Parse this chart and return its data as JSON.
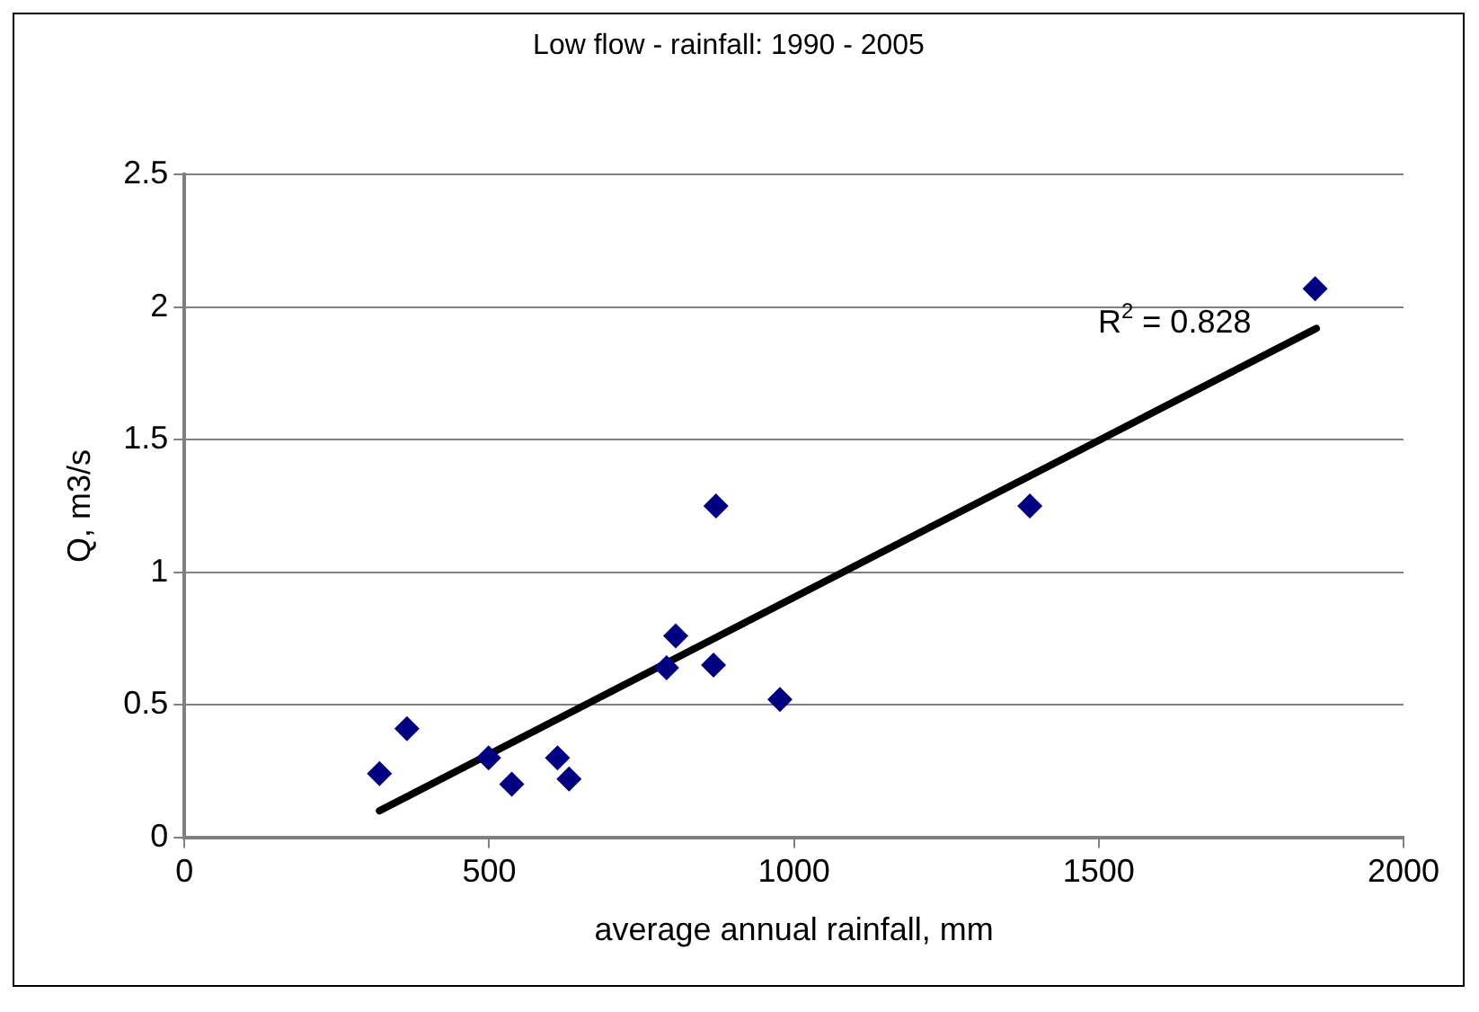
{
  "chart_data": {
    "type": "scatter",
    "title": "Low flow - rainfall: 1990 - 2005",
    "xlabel": "average annual rainfall, mm",
    "ylabel": "Q, m3/s",
    "xlim": [
      0,
      2000
    ],
    "xticks": [
      0,
      500,
      1000,
      1500,
      2000
    ],
    "ylim": [
      0,
      2.5
    ],
    "yticks": [
      0,
      0.5,
      1,
      1.5,
      2,
      2.5
    ],
    "grid": "y",
    "legend": false,
    "marker": "diamond",
    "annotations": [
      "R$^{2}$ = 0.828"
    ],
    "series": [
      {
        "type": "scatter",
        "color": "#000080",
        "x": [
          320,
          365,
          499,
          537,
          612,
          631,
          791,
          806,
          868,
          872,
          977,
          1387,
          1855
        ],
        "values": [
          0.24,
          0.41,
          0.3,
          0.2,
          0.3,
          0.22,
          0.64,
          0.76,
          0.65,
          1.25,
          0.52,
          1.25,
          2.07
        ]
      },
      {
        "type": "line",
        "color": "#000000",
        "marker": "none",
        "x": [
          320,
          1857
        ],
        "values": [
          0.1,
          1.92
        ]
      }
    ]
  }
}
